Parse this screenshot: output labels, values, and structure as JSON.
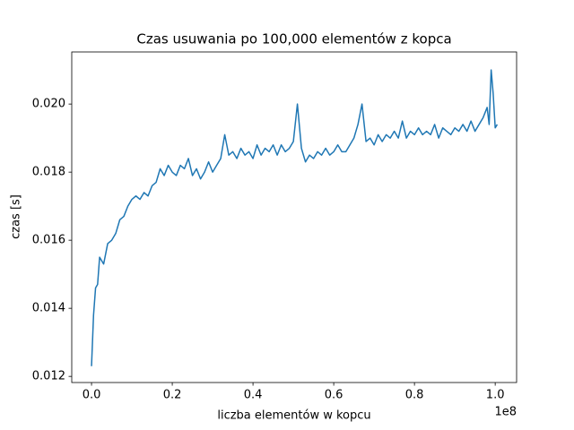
{
  "chart_data": {
    "type": "line",
    "title": "Czas usuwania po 100,000 elementów z kopca",
    "x_label": "liczba elementów w kopcu",
    "x_offset_label": "1e8",
    "y_label": "czas [s]",
    "x": [
      0.0,
      0.005,
      0.01,
      0.015,
      0.02,
      0.03,
      0.04,
      0.05,
      0.06,
      0.07,
      0.08,
      0.09,
      0.1,
      0.11,
      0.12,
      0.13,
      0.14,
      0.15,
      0.16,
      0.17,
      0.18,
      0.19,
      0.2,
      0.21,
      0.22,
      0.23,
      0.24,
      0.25,
      0.26,
      0.27,
      0.28,
      0.29,
      0.3,
      0.31,
      0.32,
      0.33,
      0.34,
      0.35,
      0.36,
      0.37,
      0.38,
      0.39,
      0.4,
      0.41,
      0.42,
      0.43,
      0.44,
      0.45,
      0.46,
      0.47,
      0.48,
      0.49,
      0.5,
      0.51,
      0.52,
      0.53,
      0.54,
      0.55,
      0.56,
      0.57,
      0.58,
      0.59,
      0.6,
      0.61,
      0.62,
      0.63,
      0.64,
      0.65,
      0.66,
      0.67,
      0.68,
      0.69,
      0.7,
      0.71,
      0.72,
      0.73,
      0.74,
      0.75,
      0.76,
      0.77,
      0.78,
      0.79,
      0.8,
      0.81,
      0.82,
      0.83,
      0.84,
      0.85,
      0.86,
      0.87,
      0.88,
      0.89,
      0.9,
      0.91,
      0.92,
      0.93,
      0.94,
      0.95,
      0.96,
      0.97,
      0.98,
      0.985,
      0.99,
      0.995,
      1.0,
      1.005
    ],
    "series": [
      {
        "color": "#1f77b4",
        "values": [
          0.0123,
          0.0138,
          0.0146,
          0.0147,
          0.0155,
          0.0153,
          0.0159,
          0.016,
          0.0162,
          0.0166,
          0.0167,
          0.017,
          0.0172,
          0.0173,
          0.0172,
          0.0174,
          0.0173,
          0.0176,
          0.0177,
          0.0181,
          0.0179,
          0.0182,
          0.018,
          0.0179,
          0.0182,
          0.0181,
          0.0184,
          0.0179,
          0.0181,
          0.0178,
          0.018,
          0.0183,
          0.018,
          0.0182,
          0.0184,
          0.0191,
          0.0185,
          0.0186,
          0.0184,
          0.0187,
          0.0185,
          0.0186,
          0.0184,
          0.0188,
          0.0185,
          0.0187,
          0.0186,
          0.0188,
          0.0185,
          0.0188,
          0.0186,
          0.0187,
          0.0189,
          0.02,
          0.0187,
          0.0183,
          0.0185,
          0.0184,
          0.0186,
          0.0185,
          0.0187,
          0.0185,
          0.0186,
          0.0188,
          0.0186,
          0.0186,
          0.0188,
          0.019,
          0.0194,
          0.02,
          0.0189,
          0.019,
          0.0188,
          0.0191,
          0.0189,
          0.0191,
          0.019,
          0.0192,
          0.019,
          0.0195,
          0.019,
          0.0192,
          0.0191,
          0.0193,
          0.0191,
          0.0192,
          0.0191,
          0.0194,
          0.019,
          0.0193,
          0.0192,
          0.0191,
          0.0193,
          0.0192,
          0.0194,
          0.0192,
          0.0195,
          0.0192,
          0.0194,
          0.0196,
          0.0199,
          0.0194,
          0.021,
          0.0203,
          0.0193,
          0.0194
        ]
      }
    ],
    "xlim": [
      -0.049,
      1.053
    ],
    "xticks": [
      {
        "value": 0,
        "label": "0.0"
      },
      0.2,
      0.4,
      0.6,
      0.8,
      {
        "value": 1,
        "label": "1.0"
      }
    ],
    "ylim": [
      0.01182,
      0.02153
    ],
    "yticks": [
      0.012,
      0.014,
      0.016,
      0.018,
      {
        "value": 0.02,
        "label": "0.020"
      }
    ],
    "grid": false
  }
}
